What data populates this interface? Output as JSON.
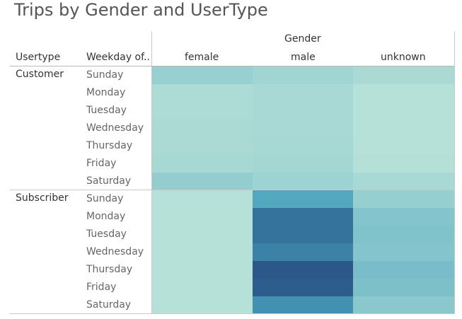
{
  "title": "Trips by Gender and UserType",
  "column_group_header": "Gender",
  "row_header_usertype": "Usertype",
  "row_header_weekday": "Weekday of..",
  "usertypes": [
    "Customer",
    "Subscriber"
  ],
  "weekdays": [
    "Sunday",
    "Monday",
    "Tuesday",
    "Wednesday",
    "Thursday",
    "Friday",
    "Saturday"
  ],
  "genders": [
    "female",
    "male",
    "unknown"
  ],
  "color_scale": {
    "low": "#bde5da",
    "mid": "#4aa3bd",
    "high": "#2b5889"
  },
  "chart_data": {
    "type": "heatmap",
    "title": "Trips by Gender and UserType",
    "columns_label": "Gender",
    "x": [
      "female",
      "male",
      "unknown"
    ],
    "rows": [
      {
        "usertype": "Customer",
        "weekday": "Sunday",
        "values": [
          0.16,
          0.12,
          0.08
        ]
      },
      {
        "usertype": "Customer",
        "weekday": "Monday",
        "values": [
          0.07,
          0.09,
          0.03
        ]
      },
      {
        "usertype": "Customer",
        "weekday": "Tuesday",
        "values": [
          0.07,
          0.09,
          0.03
        ]
      },
      {
        "usertype": "Customer",
        "weekday": "Wednesday",
        "values": [
          0.08,
          0.09,
          0.03
        ]
      },
      {
        "usertype": "Customer",
        "weekday": "Thursday",
        "values": [
          0.08,
          0.1,
          0.03
        ]
      },
      {
        "usertype": "Customer",
        "weekday": "Friday",
        "values": [
          0.1,
          0.11,
          0.04
        ]
      },
      {
        "usertype": "Customer",
        "weekday": "Saturday",
        "values": [
          0.18,
          0.14,
          0.09
        ]
      },
      {
        "usertype": "Subscriber",
        "weekday": "Sunday",
        "values": [
          0.03,
          0.46,
          0.17
        ]
      },
      {
        "usertype": "Subscriber",
        "weekday": "Monday",
        "values": [
          0.03,
          0.82,
          0.25
        ]
      },
      {
        "usertype": "Subscriber",
        "weekday": "Tuesday",
        "values": [
          0.03,
          0.82,
          0.26
        ]
      },
      {
        "usertype": "Subscriber",
        "weekday": "Wednesday",
        "values": [
          0.03,
          0.72,
          0.25
        ]
      },
      {
        "usertype": "Subscriber",
        "weekday": "Thursday",
        "values": [
          0.03,
          1.0,
          0.3
        ]
      },
      {
        "usertype": "Subscriber",
        "weekday": "Friday",
        "values": [
          0.03,
          0.97,
          0.28
        ]
      },
      {
        "usertype": "Subscriber",
        "weekday": "Saturday",
        "values": [
          0.03,
          0.62,
          0.22
        ]
      }
    ]
  }
}
